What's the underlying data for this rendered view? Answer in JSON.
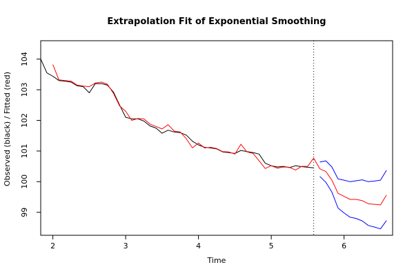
{
  "chart_data": {
    "type": "line",
    "title": "Extrapolation Fit of Exponential Smoothing",
    "xlabel": "Time",
    "ylabel": "Observed (black) / Fitted (red)",
    "xlim": [
      1.833,
      6.667
    ],
    "ylim": [
      98.25,
      104.6
    ],
    "x_ticks": [
      2,
      3,
      4,
      5,
      6
    ],
    "y_ticks": [
      99,
      100,
      101,
      102,
      103,
      104
    ],
    "grid": false,
    "forecast_origin": 5.583,
    "series": [
      {
        "role": "observed",
        "color": "#000000",
        "x": [
          1.833,
          1.917,
          2.0,
          2.083,
          2.167,
          2.25,
          2.333,
          2.417,
          2.5,
          2.583,
          2.667,
          2.75,
          2.833,
          2.917,
          3.0,
          3.083,
          3.167,
          3.25,
          3.333,
          3.417,
          3.5,
          3.583,
          3.667,
          3.75,
          3.833,
          3.917,
          4.0,
          4.083,
          4.167,
          4.25,
          4.333,
          4.417,
          4.5,
          4.583,
          4.667,
          4.75,
          4.833,
          4.917,
          5.0,
          5.083,
          5.167,
          5.25,
          5.333,
          5.417,
          5.5,
          5.583
        ],
        "values": [
          104.0,
          103.55,
          103.44,
          103.3,
          103.28,
          103.25,
          103.13,
          103.1,
          102.9,
          103.2,
          103.2,
          103.15,
          102.92,
          102.5,
          102.1,
          102.05,
          102.05,
          101.98,
          101.82,
          101.75,
          101.58,
          101.68,
          101.62,
          101.6,
          101.52,
          101.32,
          101.2,
          101.12,
          101.1,
          101.07,
          100.97,
          100.95,
          100.92,
          101.02,
          100.98,
          100.95,
          100.9,
          100.6,
          100.52,
          100.48,
          100.5,
          100.46,
          100.52,
          100.49,
          100.47,
          100.45
        ]
      },
      {
        "role": "fitted",
        "color": "#ff0000",
        "x": [
          2.0,
          2.083,
          2.167,
          2.25,
          2.333,
          2.417,
          2.5,
          2.583,
          2.667,
          2.75,
          2.833,
          2.917,
          3.0,
          3.083,
          3.167,
          3.25,
          3.333,
          3.417,
          3.5,
          3.583,
          3.667,
          3.75,
          3.833,
          3.917,
          4.0,
          4.083,
          4.167,
          4.25,
          4.333,
          4.417,
          4.5,
          4.583,
          4.667,
          4.75,
          4.833,
          4.917,
          5.0,
          5.083,
          5.167,
          5.25,
          5.333,
          5.417,
          5.5,
          5.583
        ],
        "values": [
          103.82,
          103.32,
          103.3,
          103.28,
          103.15,
          103.12,
          103.1,
          103.22,
          103.25,
          103.18,
          102.88,
          102.47,
          102.3,
          102.0,
          102.06,
          102.05,
          101.88,
          101.8,
          101.72,
          101.86,
          101.65,
          101.62,
          101.4,
          101.1,
          101.26,
          101.1,
          101.12,
          101.08,
          100.98,
          100.97,
          100.9,
          101.22,
          100.97,
          100.92,
          100.68,
          100.43,
          100.52,
          100.44,
          100.48,
          100.47,
          100.38,
          100.5,
          100.5,
          100.77
        ]
      },
      {
        "role": "forecast",
        "color": "#ff0000",
        "x": [
          5.583,
          5.667,
          5.75,
          5.833,
          5.917,
          6.0,
          6.083,
          6.167,
          6.25,
          6.333,
          6.417,
          6.5,
          6.583
        ],
        "values": [
          100.77,
          100.42,
          100.33,
          100.05,
          99.62,
          99.52,
          99.42,
          99.42,
          99.38,
          99.28,
          99.26,
          99.24,
          99.56
        ]
      },
      {
        "role": "upper-band",
        "color": "#0000ff",
        "x": [
          5.667,
          5.75,
          5.833,
          5.917,
          6.0,
          6.083,
          6.167,
          6.25,
          6.333,
          6.417,
          6.5,
          6.583
        ],
        "values": [
          100.64,
          100.68,
          100.48,
          100.09,
          100.05,
          100.0,
          100.03,
          100.06,
          100.0,
          100.02,
          100.05,
          100.37
        ]
      },
      {
        "role": "lower-band",
        "color": "#0000ff",
        "x": [
          5.667,
          5.75,
          5.833,
          5.917,
          6.0,
          6.083,
          6.167,
          6.25,
          6.333,
          6.417,
          6.5,
          6.583
        ],
        "values": [
          100.17,
          99.98,
          99.66,
          99.14,
          98.98,
          98.84,
          98.8,
          98.72,
          98.57,
          98.52,
          98.46,
          98.73
        ]
      }
    ]
  }
}
